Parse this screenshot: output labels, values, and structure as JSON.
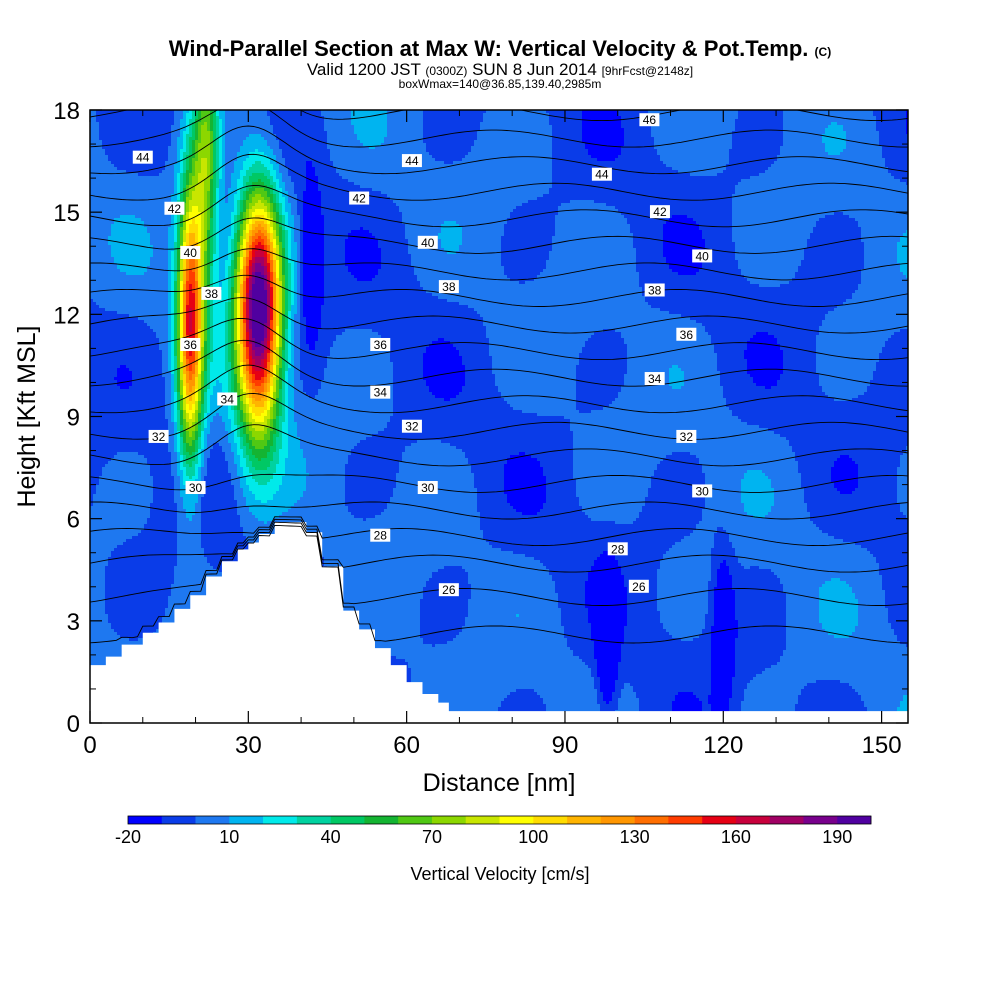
{
  "header": {
    "title": "Wind-Parallel Section at Max W: Vertical Velocity & Pot.Temp.",
    "title_suffix": "(C)",
    "valid_prefix": "Valid 1200 JST",
    "valid_utc": "(0300Z)",
    "valid_date": "SUN 8 Jun 2014",
    "forecast": "[9hrFcst@2148z]",
    "box_info": "boxWmax=140@36.85,139.40,2985m"
  },
  "chart_data": {
    "type": "heatmap",
    "title": "Wind-Parallel Section at Max W: Vertical Velocity & Pot.Temp.",
    "xlabel": "Distance [nm]",
    "ylabel": "Height [Kft MSL]",
    "xlim": [
      0,
      155
    ],
    "ylim": [
      0,
      18
    ],
    "x_ticks": [
      0,
      30,
      60,
      90,
      120,
      150
    ],
    "y_ticks": [
      0,
      3,
      6,
      9,
      12,
      15,
      18
    ],
    "colorbar": {
      "label": "Vertical Velocity [cm/s]",
      "tick_values": [
        -20,
        10,
        40,
        70,
        100,
        130,
        160,
        190
      ],
      "levels_start": -20,
      "level_step": 10,
      "colors": [
        "#0000ff",
        "#0a3ce8",
        "#1e78f0",
        "#00b4f0",
        "#00eaea",
        "#00d2a0",
        "#00c864",
        "#14b432",
        "#50c814",
        "#8cd700",
        "#c8e600",
        "#ffff00",
        "#ffdc00",
        "#ffb400",
        "#ff9600",
        "#ff6e00",
        "#ff3c00",
        "#e60014",
        "#c8003c",
        "#a00064",
        "#78008c",
        "#5000a0"
      ]
    },
    "background_velocity_cm_s": 0,
    "updraft_cores": [
      {
        "x_nm": 32,
        "y_kft": 12.2,
        "peak_cm_s": 210
      },
      {
        "x_nm": 19,
        "y_kft": 12.0,
        "peak_cm_s": 150
      },
      {
        "x_nm": 22,
        "y_kft": 16.5,
        "peak_cm_s": 70
      }
    ],
    "downdraft_cores": [
      {
        "x_nm": 42,
        "y_kft": 13.5,
        "peak_cm_s": -20
      },
      {
        "x_nm": 98,
        "y_kft": 2.0,
        "peak_cm_s": -20
      },
      {
        "x_nm": 120,
        "y_kft": 2.8,
        "peak_cm_s": -20
      }
    ],
    "terrain_kft": [
      [
        0,
        1.7
      ],
      [
        3,
        1.95
      ],
      [
        6,
        2.3
      ],
      [
        10,
        2.65
      ],
      [
        13,
        2.95
      ],
      [
        16,
        3.35
      ],
      [
        19,
        3.75
      ],
      [
        22,
        4.3
      ],
      [
        25,
        4.75
      ],
      [
        28,
        5.1
      ],
      [
        30,
        5.3
      ],
      [
        32,
        5.55
      ],
      [
        35,
        5.9
      ],
      [
        41,
        5.6
      ],
      [
        44,
        4.6
      ],
      [
        48,
        3.3
      ],
      [
        51,
        2.75
      ],
      [
        54,
        2.2
      ],
      [
        57,
        1.7
      ],
      [
        60,
        1.2
      ],
      [
        63,
        0.85
      ],
      [
        66,
        0.6
      ],
      [
        68,
        0.35
      ],
      [
        155,
        0.35
      ]
    ],
    "isentropes": [
      {
        "theta": 26,
        "label_positions": [
          [
            68,
            3.9
          ],
          [
            104,
            4.0
          ]
        ]
      },
      {
        "theta": 28,
        "label_positions": [
          [
            55,
            5.5
          ],
          [
            100,
            5.1
          ]
        ]
      },
      {
        "theta": 30,
        "label_positions": [
          [
            20,
            6.9
          ],
          [
            64,
            6.9
          ],
          [
            116,
            6.8
          ]
        ]
      },
      {
        "theta": 32,
        "label_positions": [
          [
            13,
            8.4
          ],
          [
            61,
            8.7
          ],
          [
            113,
            8.4
          ]
        ]
      },
      {
        "theta": 34,
        "label_positions": [
          [
            26,
            9.5
          ],
          [
            55,
            9.7
          ],
          [
            107,
            10.1
          ]
        ]
      },
      {
        "theta": 36,
        "label_positions": [
          [
            19,
            11.1
          ],
          [
            55,
            11.1
          ],
          [
            113,
            11.4
          ]
        ]
      },
      {
        "theta": 38,
        "label_positions": [
          [
            23,
            12.6
          ],
          [
            68,
            12.8
          ],
          [
            107,
            12.7
          ]
        ]
      },
      {
        "theta": 40,
        "label_positions": [
          [
            19,
            13.8
          ],
          [
            64,
            14.1
          ],
          [
            116,
            13.7
          ]
        ]
      },
      {
        "theta": 42,
        "label_positions": [
          [
            16,
            15.1
          ],
          [
            51,
            15.4
          ],
          [
            108,
            15.0
          ]
        ]
      },
      {
        "theta": 44,
        "label_positions": [
          [
            10,
            16.6
          ],
          [
            61,
            16.5
          ],
          [
            97,
            16.1
          ]
        ]
      },
      {
        "theta": 46,
        "label_positions": [
          [
            106,
            17.7
          ]
        ]
      }
    ],
    "extra_isentrope_levels": [
      25,
      27,
      29,
      31,
      33,
      35,
      37,
      39,
      41,
      43,
      45,
      47
    ]
  }
}
